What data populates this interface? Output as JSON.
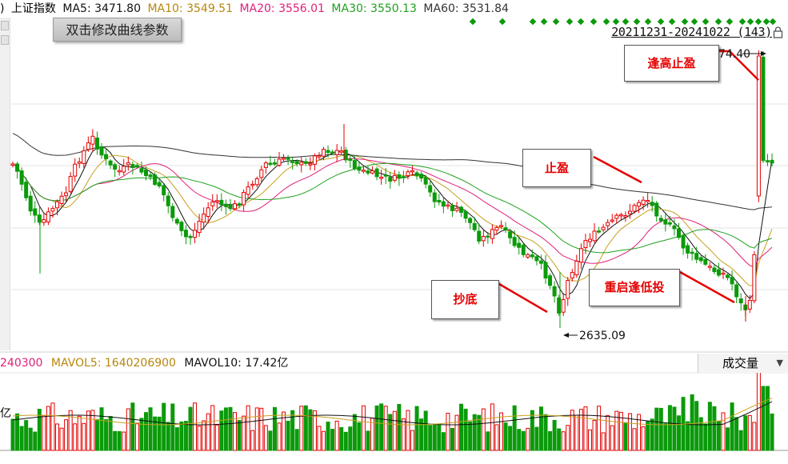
{
  "ma_line": {
    "prefix": ")",
    "index_name": "上证指数",
    "items": [
      {
        "label": "MA5: 3471.80",
        "color": "#111111"
      },
      {
        "label": "MA10: 3549.51",
        "color": "#b8860b"
      },
      {
        "label": "MA20: 3556.01",
        "color": "#e0207a"
      },
      {
        "label": "MA30: 3550.13",
        "color": "#20a020"
      },
      {
        "label": "MA60: 3531.84",
        "color": "#333333"
      }
    ]
  },
  "tooltip": {
    "label": "双击修改曲线参数"
  },
  "range": {
    "label": "20211231-20241022 (143)"
  },
  "price_labels": {
    "high": "74.40",
    "low": "2635.09"
  },
  "annotations": [
    {
      "id": "take-profit-high",
      "label": "逢高止盈"
    },
    {
      "id": "take-profit",
      "label": "止盈"
    },
    {
      "id": "bottom-fish",
      "label": "抄底"
    },
    {
      "id": "restart-dip-buy",
      "label": "重启逢低投"
    }
  ],
  "volume": {
    "vol_label": "240300",
    "mavol5_label": "MAVOL5: 1640206900",
    "mavol10_label": "MAVOL10: 17.42亿",
    "unit": "亿",
    "dropdown": "成交量"
  },
  "colors": {
    "up": "#e60000",
    "down": "#0a9a0a",
    "signal": "#0a9a0a",
    "annotation_text": "#e60000"
  }
}
